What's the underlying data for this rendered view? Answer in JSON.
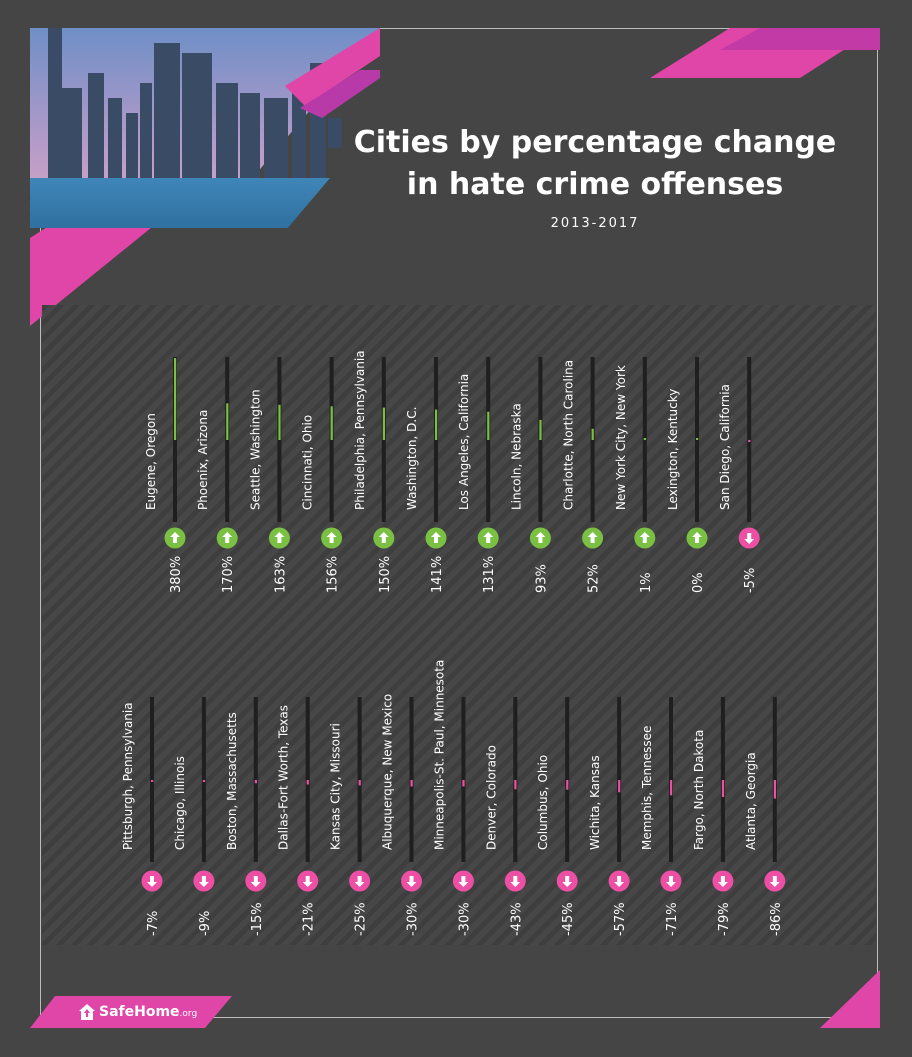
{
  "header": {
    "title_line1": "Cities by percentage change",
    "title_line2": "in hate crime offenses",
    "subtitle": "2013-2017"
  },
  "colors": {
    "background": "#454545",
    "positive": "#7ac143",
    "negative": "#ec4fa4",
    "accent_pink": "#e244a8",
    "accent_purple": "#9b2fa8"
  },
  "icons": {
    "positive": "arrow-up-icon",
    "negative": "arrow-down-icon"
  },
  "logo": {
    "name": "SafeHome",
    "domain": ".org"
  },
  "chart_data": {
    "type": "bar",
    "title": "Cities by percentage change in hate crime offenses",
    "subtitle": "2013-2017",
    "orientation": "vertical",
    "rows": [
      {
        "categories": [
          "Eugene, Oregon",
          "Phoenix, Arizona",
          "Seattle, Washington",
          "Cincinnati, Ohio",
          "Philadelphia, Pennsylvania",
          "Washington, D.C.",
          "Los Angeles, California",
          "Lincoln, Nebraska",
          "Charlotte, North Carolina",
          "New York City, New York",
          "Lexington, Kentucky",
          "San Diego, California"
        ],
        "values": [
          380,
          170,
          163,
          156,
          150,
          141,
          131,
          93,
          52,
          1,
          0,
          -5
        ],
        "labels": [
          "380%",
          "170%",
          "163%",
          "156%",
          "150%",
          "141%",
          "131%",
          "93%",
          "52%",
          "1%",
          "0%",
          "-5%"
        ]
      },
      {
        "categories": [
          "Pittsburgh, Pennsylvania",
          "Chicago, Illinois",
          "Boston, Massachusetts",
          "Dallas-Fort Worth, Texas",
          "Kansas City, Missouri",
          "Albuquerque, New Mexico",
          "Minneapolis-St. Paul, Minnesota",
          "Denver, Colorado",
          "Columbus, Ohio",
          "Wichita, Kansas",
          "Memphis, Tennessee",
          "Fargo, North Dakota",
          "Atlanta, Georgia"
        ],
        "values": [
          -7,
          -9,
          -15,
          -21,
          -25,
          -30,
          -30,
          -43,
          -45,
          -57,
          -71,
          -79,
          -86
        ],
        "labels": [
          "-7%",
          "-9%",
          "-15%",
          "-21%",
          "-25%",
          "-30%",
          "-30%",
          "-43%",
          "-45%",
          "-57%",
          "-71%",
          "-79%",
          "-86%"
        ]
      }
    ],
    "series_colors": {
      "positive": "#7ac143",
      "negative": "#ec4fa4"
    }
  }
}
